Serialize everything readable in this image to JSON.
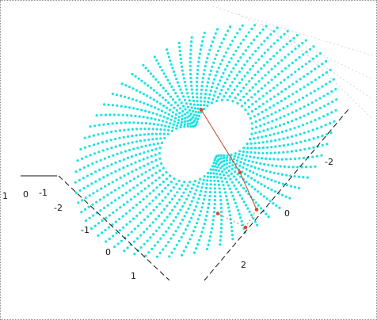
{
  "chart_data": {
    "type": "scatter",
    "title": "",
    "view": "3d",
    "colors": {
      "surface": "#1ee3e3",
      "trace": "#d24d2a"
    },
    "surface": {
      "shape": "annulus",
      "inner_boundary": "peanut",
      "rings": 22,
      "points_per_ring": 64
    },
    "axes": {
      "x": {
        "ticks": [
          "1",
          "0",
          "-1",
          "-2"
        ]
      },
      "y": {
        "ticks": [
          "-1",
          "0",
          "1"
        ]
      },
      "z": {
        "ticks": [
          "-2",
          "0",
          "2"
        ]
      }
    },
    "trace_points": [
      {
        "x": 1.2,
        "y": -1.1
      },
      {
        "x": 1.9,
        "y": -0.6
      },
      {
        "x": 2.2,
        "y": -0.2
      },
      {
        "x": 2.0,
        "y": 0.3
      },
      {
        "x": 1.5,
        "y": 0.5
      }
    ]
  }
}
